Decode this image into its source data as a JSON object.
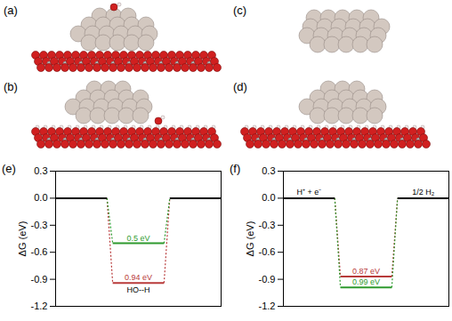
{
  "structure_panels": [
    "(a)",
    "(b)",
    "(c)",
    "(d)"
  ],
  "chart_data": [
    {
      "type": "line",
      "title": "(e)",
      "y_label": "ΔG (eV)",
      "categories": [
        null,
        null,
        null
      ],
      "series": [
        {
          "color": "#b83a3a",
          "values": [
            0,
            -0.94,
            0
          ],
          "annotation": "0.94 eV",
          "line_style": "dotted"
        },
        {
          "color": "#2e9a2e",
          "values": [
            0,
            -0.5,
            0
          ],
          "annotation": "0.5 eV",
          "line_style": "dotted"
        }
      ],
      "state_labels": [
        null,
        "HO--H",
        null
      ],
      "ylim": [
        -1.2,
        0.3
      ],
      "yticks": [
        -1.2,
        -0.9,
        -0.6,
        -0.3,
        {
          "value": 0,
          "label": "0.0"
        },
        0.3
      ],
      "tick_labels": "y"
    },
    {
      "type": "line",
      "title": "(f)",
      "y_label": "ΔG (eV)",
      "categories": [
        null,
        null,
        null
      ],
      "series": [
        {
          "color": "#b83a3a",
          "values": [
            0,
            -0.87,
            0
          ],
          "annotation": "0.87 eV",
          "line_style": "dotted"
        },
        {
          "color": "#2e9a2e",
          "values": [
            0,
            -0.99,
            0
          ],
          "annotation": "0.99 eV",
          "line_style": "dotted"
        }
      ],
      "state_labels": [
        "H⁺ + e⁻",
        null,
        "1/2 H₂"
      ],
      "ylim": [
        -1.2,
        0.3
      ],
      "yticks": [
        -1.2,
        -0.9,
        -0.6,
        -0.3,
        {
          "value": 0,
          "label": "0.0"
        },
        0.3
      ],
      "tick_labels": "y"
    }
  ]
}
